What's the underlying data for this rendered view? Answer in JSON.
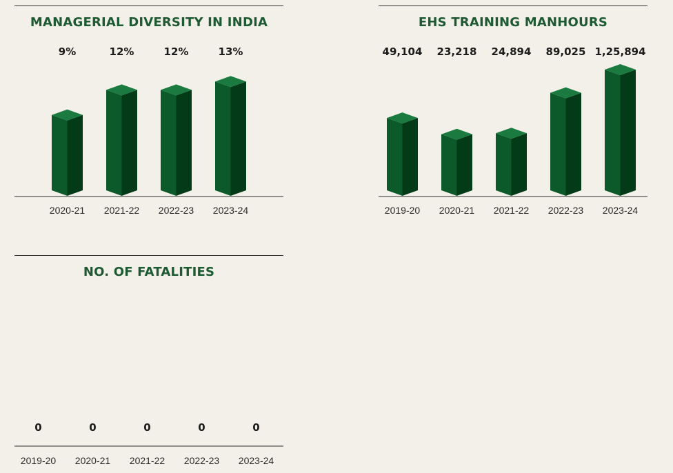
{
  "colors": {
    "background": "#f3efe9",
    "title": "#1d5a32",
    "bar_front": "#0c5a2a",
    "bar_side": "#033a17",
    "bar_top": "#1a7a3f",
    "rule": "#2b2b2b"
  },
  "chart_data": [
    {
      "type": "bar",
      "title": "MANAGERIAL DIVERSITY IN INDIA",
      "categories": [
        "2020-21",
        "2021-22",
        "2022-23",
        "2023-24"
      ],
      "values": [
        9,
        12,
        12,
        13
      ],
      "value_labels": [
        "9%",
        "12%",
        "12%",
        "13%"
      ],
      "ylim": [
        0,
        15
      ],
      "grid": false
    },
    {
      "type": "bar",
      "title": "EHS TRAINING MANHOURS",
      "categories": [
        "2019-20",
        "2020-21",
        "2021-22",
        "2022-23",
        "2023-24"
      ],
      "values": [
        49104,
        23218,
        24894,
        89025,
        125894
      ],
      "value_labels": [
        "49,104",
        "23,218",
        "24,894",
        "89,025",
        "1,25,894"
      ],
      "grid": false
    },
    {
      "type": "bar",
      "title": "NO. OF FATALITIES",
      "categories": [
        "2019-20",
        "2020-21",
        "2021-22",
        "2022-23",
        "2023-24"
      ],
      "values": [
        0,
        0,
        0,
        0,
        0
      ],
      "value_labels": [
        "0",
        "0",
        "0",
        "0",
        "0"
      ],
      "grid": false
    }
  ]
}
